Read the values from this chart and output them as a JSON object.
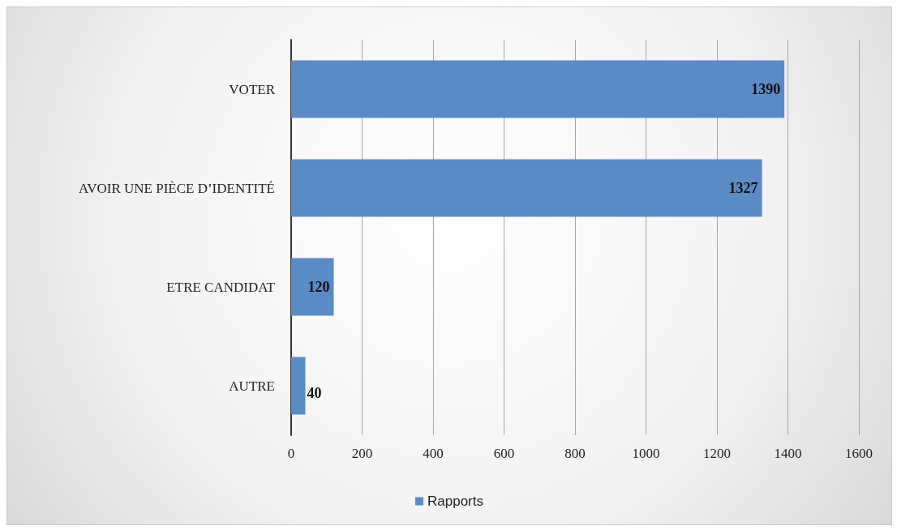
{
  "chart_data": {
    "type": "bar",
    "orientation": "horizontal",
    "categories": [
      "VOTER",
      "AVOIR UNE PIÈCE D’IDENTITÉ",
      "ETRE CANDIDAT",
      "AUTRE"
    ],
    "series": [
      {
        "name": "Rapports",
        "color": "#5b8bc6",
        "values": [
          1390,
          1327,
          120,
          40
        ]
      }
    ],
    "xlim": [
      0,
      1600
    ],
    "xticks": [
      0,
      200,
      400,
      600,
      800,
      1000,
      1200,
      1400,
      1600
    ],
    "grid": "x",
    "legend": "bottom",
    "data_labels": true
  }
}
